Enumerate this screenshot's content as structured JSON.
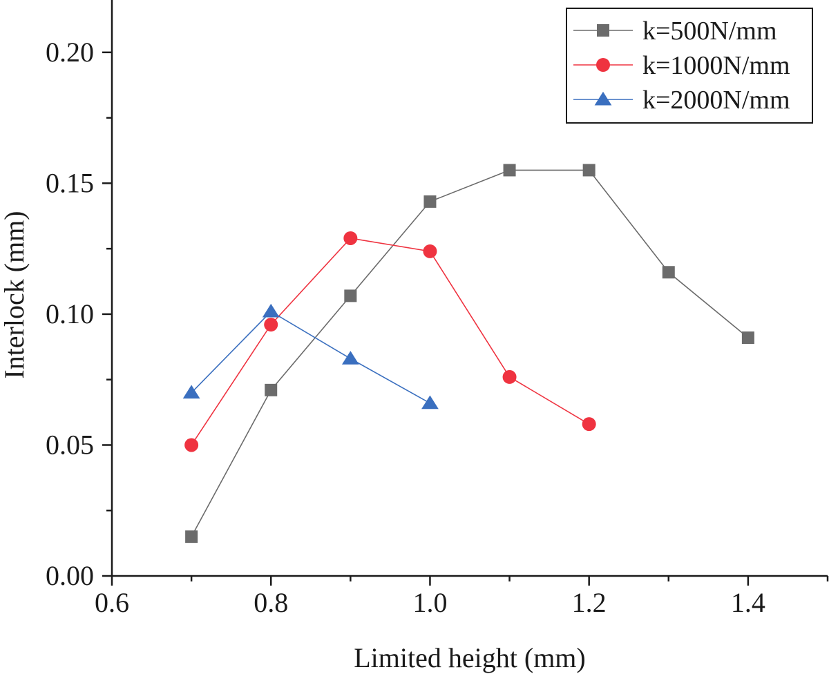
{
  "chart_data": {
    "type": "line",
    "title": "",
    "xlabel": "Limited height (mm)",
    "ylabel": "Interlock (mm)",
    "xlim": [
      0.6,
      1.5
    ],
    "ylim": [
      0.0,
      0.22
    ],
    "xticks": [
      0.6,
      0.8,
      1.0,
      1.2,
      1.4
    ],
    "xtick_labels": [
      "0.6",
      "0.8",
      "1.0",
      "1.2",
      "1.4"
    ],
    "yticks": [
      0.0,
      0.05,
      0.1,
      0.15,
      0.2
    ],
    "ytick_labels": [
      "0.00",
      "0.05",
      "0.10",
      "0.15",
      "0.20"
    ],
    "legend_position": "top-right",
    "series": [
      {
        "name": "k=500N/mm",
        "marker": "square",
        "color": "#6b6b6b",
        "x": [
          0.7,
          0.8,
          0.9,
          1.0,
          1.1,
          1.2,
          1.3,
          1.4
        ],
        "y": [
          0.015,
          0.071,
          0.107,
          0.143,
          0.155,
          0.155,
          0.116,
          0.091
        ]
      },
      {
        "name": "k=1000N/mm",
        "marker": "circle",
        "color": "#ef3340",
        "x": [
          0.7,
          0.8,
          0.9,
          1.0,
          1.1,
          1.2
        ],
        "y": [
          0.05,
          0.096,
          0.129,
          0.124,
          0.076,
          0.058
        ]
      },
      {
        "name": "k=2000N/mm",
        "marker": "triangle",
        "color": "#3a6fbf",
        "x": [
          0.7,
          0.8,
          0.9,
          1.0
        ],
        "y": [
          0.07,
          0.101,
          0.083,
          0.066
        ]
      }
    ]
  }
}
